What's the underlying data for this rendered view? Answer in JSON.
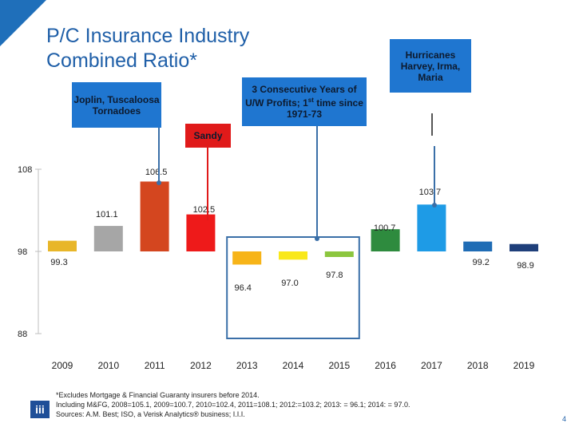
{
  "title": "P/C Insurance Industry\nCombined Ratio*",
  "callouts": {
    "joplin": "Joplin, Tuscaloosa Tornadoes",
    "consecutive_main": "3 Consecutive Years of U/W Profits; 1",
    "consecutive_sup": "st",
    "consecutive_tail": " time since 1971-73",
    "sandy": "Sandy",
    "hurricanes": "Hurricanes Harvey, Irma, Maria"
  },
  "footnote": {
    "line1": "*Excludes Mortgage & Financial Guaranty insurers before 2014.",
    "line2": "Including M&FG, 2008=105.1, 2009=100.7, 2010=102.4, 2011=108.1; 2012:=103.2; 2013: = 96.1; 2014: = 97.0.",
    "line3": "Sources: A.M. Best; ISO, a Verisk Analytics® business; I.I.I."
  },
  "logo_text": "iii",
  "page_number": "4",
  "colors": {
    "brand": "#1f5fa8",
    "callout_blue": "#1f76d0",
    "callout_red": "#e01a1a",
    "highlight_box": "#3a6fa8"
  },
  "chart_data": {
    "type": "bar",
    "title": "P/C Insurance Industry Combined Ratio*",
    "xlabel": "",
    "ylabel": "",
    "yticks": [
      108,
      98,
      88
    ],
    "ylim": [
      88,
      108
    ],
    "baseline": 98,
    "categories": [
      "2009",
      "2010",
      "2011",
      "2012",
      "2013",
      "2014",
      "2015",
      "2016",
      "2017",
      "2018",
      "2019"
    ],
    "values": [
      99.3,
      101.1,
      106.5,
      102.5,
      96.4,
      97.0,
      97.8,
      100.7,
      103.7,
      99.2,
      98.9
    ],
    "labels": [
      "99.3",
      "101.1",
      "106.5",
      "102.5",
      "96.4",
      "97.0",
      "97.8",
      "100.7",
      "103.7",
      "99.2",
      "98.9"
    ],
    "colors": [
      "#e8b629",
      "#a6a6a6",
      "#d4461f",
      "#ee1a1a",
      "#f7b418",
      "#f9e81a",
      "#8cc63f",
      "#2e8b3e",
      "#1e9be6",
      "#1f6cb5",
      "#1f3f7a"
    ],
    "highlight_range": [
      "2013",
      "2015"
    ]
  }
}
